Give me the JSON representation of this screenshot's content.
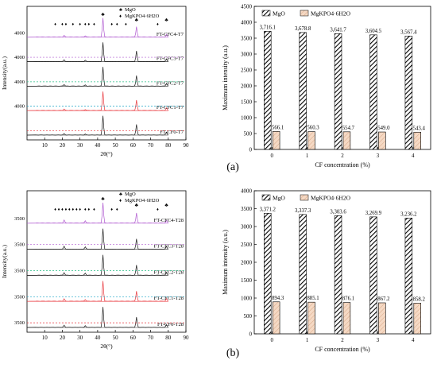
{
  "colors": {
    "MgO": "#000000",
    "MgKPO4": "#f5d9c4",
    "MgKPO4_stroke": "#d8a888",
    "traces": [
      "#1a1a1a",
      "#e8363b",
      "#1a1a1a",
      "#1a1a1a",
      "#b05ad0"
    ],
    "dash_lines": [
      "#e8363b",
      "#1aa3c6",
      "#2bbf87",
      "#b05ad0"
    ]
  },
  "chart_data": [
    {
      "type": "line",
      "ylabel": "Intensity(a.u.)",
      "xlabel": "2θ(°)",
      "xlim": [
        0,
        90
      ],
      "xticks": [
        10,
        20,
        30,
        40,
        50,
        60,
        70,
        80,
        90
      ],
      "ytick_label": "4000",
      "legend": [
        {
          "marker": "♣",
          "label": "MgO"
        },
        {
          "marker": "♦",
          "label": "MgKPO4·6H2O"
        }
      ],
      "series": [
        {
          "name": "FT-CF0-T7",
          "peaks": [
            [
              21,
              0.07
            ],
            [
              33,
              0.05
            ],
            [
              43,
              1.0
            ],
            [
              62,
              0.55
            ],
            [
              79,
              0.14
            ]
          ]
        },
        {
          "name": "FT-CFC1-T7",
          "peaks": [
            [
              21,
              0.08
            ],
            [
              33,
              0.06
            ],
            [
              43,
              1.0
            ],
            [
              62,
              0.55
            ],
            [
              79,
              0.14
            ]
          ]
        },
        {
          "name": "FT-CFC2-T7",
          "peaks": [
            [
              21,
              0.08
            ],
            [
              33,
              0.06
            ],
            [
              43,
              1.0
            ],
            [
              62,
              0.55
            ],
            [
              79,
              0.14
            ]
          ]
        },
        {
          "name": "FT-CFC3-T7",
          "peaks": [
            [
              21,
              0.09
            ],
            [
              33,
              0.07
            ],
            [
              43,
              1.0
            ],
            [
              62,
              0.55
            ],
            [
              79,
              0.14
            ]
          ]
        },
        {
          "name": "FT-CFC4-T7",
          "peaks": [
            [
              21,
              0.09
            ],
            [
              33,
              0.07
            ],
            [
              43,
              1.0
            ],
            [
              62,
              0.55
            ],
            [
              79,
              0.14
            ]
          ]
        }
      ],
      "markers_mgo": [
        43,
        62,
        79
      ],
      "markers_mgk": [
        16,
        20,
        22,
        26,
        30,
        33,
        35,
        38,
        48,
        51,
        56,
        74
      ]
    },
    {
      "type": "bar",
      "categories": [
        "0",
        "1",
        "2",
        "3",
        "4"
      ],
      "xlabel": "CF concentration (%)",
      "ylabel": "Maximum intensity (a.u.)",
      "ylim": [
        0,
        4500
      ],
      "yticks": [
        0,
        500,
        1000,
        1500,
        2000,
        2500,
        3000,
        3500,
        4000,
        4500
      ],
      "legend_position": "top",
      "series": [
        {
          "name": "MgO",
          "values": [
            3716.1,
            3678.8,
            3641.7,
            3604.5,
            3567.4
          ]
        },
        {
          "name": "MgKPO4·6H2O",
          "values": [
            566.1,
            560.3,
            554.7,
            549.0,
            543.4
          ]
        }
      ],
      "value_labels": [
        [
          "3,716.1",
          "3,678.8",
          "3,641.7",
          "3,604.5",
          "3,567.4"
        ],
        [
          "566.1",
          "560.3",
          "554.7",
          "549.0",
          "543.4"
        ]
      ],
      "panel_label": "(a)"
    },
    {
      "type": "line",
      "ylabel": "Intensity(a.u.)",
      "xlabel": "2θ(°)",
      "xlim": [
        0,
        90
      ],
      "xticks": [
        10,
        20,
        30,
        40,
        50,
        60,
        70,
        80,
        90
      ],
      "ytick_labels": [
        "3500",
        "3500",
        "3500",
        "3500",
        "3500",
        "3500"
      ],
      "legend": [
        {
          "marker": "♣",
          "label": "MgO"
        },
        {
          "marker": "♦",
          "label": "MgKPO4·6H2O"
        }
      ],
      "series": [
        {
          "name": "FT-CF0-T28",
          "peaks": [
            [
              21,
              0.1
            ],
            [
              33,
              0.08
            ],
            [
              43,
              1.0
            ],
            [
              62,
              0.5
            ],
            [
              79,
              0.13
            ]
          ]
        },
        {
          "name": "FT-CFC1-T28",
          "peaks": [
            [
              21,
              0.12
            ],
            [
              33,
              0.09
            ],
            [
              43,
              1.0
            ],
            [
              62,
              0.5
            ],
            [
              79,
              0.13
            ]
          ]
        },
        {
          "name": "FT-CFC2-T28",
          "peaks": [
            [
              21,
              0.13
            ],
            [
              33,
              0.1
            ],
            [
              43,
              1.0
            ],
            [
              62,
              0.5
            ],
            [
              79,
              0.13
            ]
          ]
        },
        {
          "name": "FT-CFC3-T28",
          "peaks": [
            [
              21,
              0.14
            ],
            [
              33,
              0.11
            ],
            [
              43,
              1.0
            ],
            [
              62,
              0.5
            ],
            [
              79,
              0.13
            ]
          ]
        },
        {
          "name": "FT-CFC4-T28",
          "peaks": [
            [
              21,
              0.15
            ],
            [
              33,
              0.12
            ],
            [
              43,
              1.0
            ],
            [
              62,
              0.5
            ],
            [
              79,
              0.13
            ]
          ]
        }
      ],
      "markers_mgo": [
        43,
        62,
        79
      ],
      "markers_mgk": [
        16,
        18,
        20,
        22,
        24,
        26,
        28,
        30,
        33,
        35,
        38,
        48,
        51,
        74
      ]
    },
    {
      "type": "bar",
      "categories": [
        "0",
        "1",
        "2",
        "3",
        "4"
      ],
      "xlabel": "CF concentration (%)",
      "ylabel": "Maximum intensity (a.u.)",
      "ylim": [
        0,
        4000
      ],
      "yticks": [
        0,
        500,
        1000,
        1500,
        2000,
        2500,
        3000,
        3500,
        4000
      ],
      "legend_position": "top",
      "series": [
        {
          "name": "MgO",
          "values": [
            3371.2,
            3337.3,
            3303.6,
            3269.9,
            3236.2
          ]
        },
        {
          "name": "MgKPO4·6H2O",
          "values": [
            894.3,
            885.1,
            876.1,
            867.2,
            858.2
          ]
        }
      ],
      "value_labels": [
        [
          "3,371.2",
          "3,337.3",
          "3,303.6",
          "3,269.9",
          "3,236.2"
        ],
        [
          "894.3",
          "885.1",
          "876.1",
          "867.2",
          "858.2"
        ]
      ],
      "panel_label": "(b)"
    }
  ]
}
